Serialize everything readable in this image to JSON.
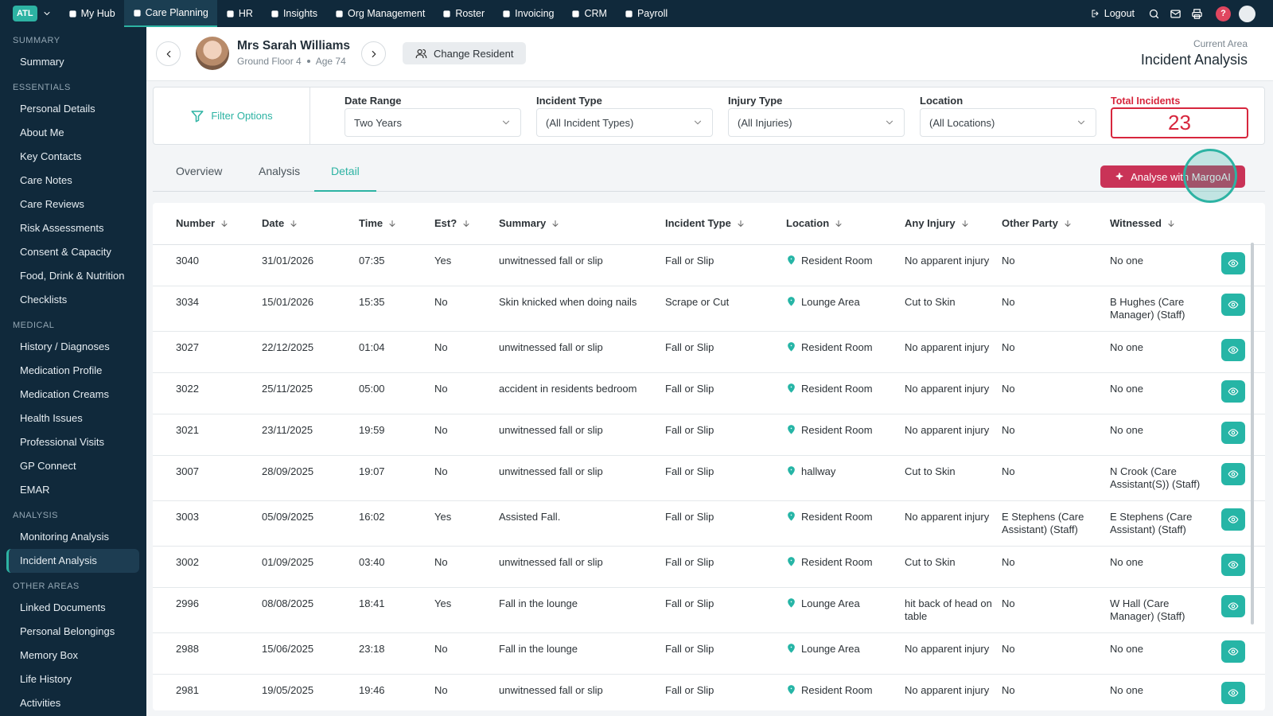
{
  "topnav": {
    "brand": "ATL",
    "items": [
      "My Hub",
      "Care Planning",
      "HR",
      "Insights",
      "Org Management",
      "Roster",
      "Invoicing",
      "CRM",
      "Payroll"
    ],
    "active": 1,
    "logout": "Logout",
    "help": "?"
  },
  "sidebar": {
    "sections": [
      {
        "title": "SUMMARY",
        "items": [
          "Summary"
        ]
      },
      {
        "title": "ESSENTIALS",
        "items": [
          "Personal Details",
          "About Me",
          "Key Contacts",
          "Care Notes",
          "Care Reviews",
          "Risk Assessments",
          "Consent & Capacity",
          "Food, Drink & Nutrition",
          "Checklists"
        ]
      },
      {
        "title": "MEDICAL",
        "items": [
          "History / Diagnoses",
          "Medication Profile",
          "Medication Creams",
          "Health Issues",
          "Professional Visits",
          "GP Connect",
          "EMAR"
        ]
      },
      {
        "title": "ANALYSIS",
        "items": [
          "Monitoring Analysis",
          "Incident Analysis"
        ]
      },
      {
        "title": "OTHER AREAS",
        "items": [
          "Linked Documents",
          "Personal Belongings",
          "Memory Box",
          "Life History",
          "Activities"
        ]
      }
    ],
    "active_section": 3,
    "active_item": 1
  },
  "resident": {
    "name": "Mrs Sarah Williams",
    "location": "Ground Floor 4",
    "age": "Age 74",
    "change": "Change Resident"
  },
  "area": {
    "label": "Current Area",
    "title": "Incident Analysis"
  },
  "filters": {
    "title": "Filter Options",
    "fields": [
      {
        "label": "Date Range",
        "value": "Two Years"
      },
      {
        "label": "Incident Type",
        "value": "(All Incident Types)"
      },
      {
        "label": "Injury Type",
        "value": "(All Injuries)"
      },
      {
        "label": "Location",
        "value": "(All Locations)"
      }
    ],
    "total": {
      "label": "Total Incidents",
      "value": 23
    }
  },
  "tabs": [
    "Overview",
    "Analysis",
    "Detail"
  ],
  "active_tab": 2,
  "ai_button": "Analyse with MargoAI",
  "table": {
    "columns": [
      "Number",
      "Date",
      "Time",
      "Est?",
      "Summary",
      "Incident Type",
      "Location",
      "Any Injury",
      "Other Party",
      "Witnessed"
    ],
    "rows": [
      [
        3040,
        "31/01/2026",
        "07:35",
        "Yes",
        "unwitnessed fall or slip",
        "Fall or Slip",
        "Resident Room",
        "No apparent injury",
        "No",
        "No one"
      ],
      [
        3034,
        "15/01/2026",
        "15:35",
        "No",
        "Skin knicked when doing nails",
        "Scrape or Cut",
        "Lounge Area",
        "Cut to Skin",
        "No",
        "B Hughes (Care Manager) (Staff)"
      ],
      [
        3027,
        "22/12/2025",
        "01:04",
        "No",
        "unwitnessed fall or slip",
        "Fall or Slip",
        "Resident Room",
        "No apparent injury",
        "No",
        "No one"
      ],
      [
        3022,
        "25/11/2025",
        "05:00",
        "No",
        "accident in residents bedroom",
        "Fall or Slip",
        "Resident Room",
        "No apparent injury",
        "No",
        "No one"
      ],
      [
        3021,
        "23/11/2025",
        "19:59",
        "No",
        "unwitnessed fall or slip",
        "Fall or Slip",
        "Resident Room",
        "No apparent injury",
        "No",
        "No one"
      ],
      [
        3007,
        "28/09/2025",
        "19:07",
        "No",
        "unwitnessed fall or slip",
        "Fall or Slip",
        "hallway",
        "Cut to Skin",
        "No",
        "N Crook (Care Assistant(S)) (Staff)"
      ],
      [
        3003,
        "05/09/2025",
        "16:02",
        "Yes",
        "Assisted Fall.",
        "Fall or Slip",
        "Resident Room",
        "No apparent injury",
        "E Stephens (Care Assistant) (Staff)",
        "E Stephens (Care Assistant) (Staff)"
      ],
      [
        3002,
        "01/09/2025",
        "03:40",
        "No",
        "unwitnessed fall or slip",
        "Fall or Slip",
        "Resident Room",
        "Cut to Skin",
        "No",
        "No one"
      ],
      [
        2996,
        "08/08/2025",
        "18:41",
        "Yes",
        "Fall in the lounge",
        "Fall or Slip",
        "Lounge Area",
        "hit back of head on table",
        "No",
        "W Hall (Care Manager) (Staff)"
      ],
      [
        2988,
        "15/06/2025",
        "23:18",
        "No",
        "Fall in the lounge",
        "Fall or Slip",
        "Lounge Area",
        "No apparent injury",
        "No",
        "No one"
      ],
      [
        2981,
        "19/05/2025",
        "19:46",
        "No",
        "unwitnessed fall or slip",
        "Fall or Slip",
        "Resident Room",
        "No apparent injury",
        "No",
        "No one"
      ]
    ]
  }
}
